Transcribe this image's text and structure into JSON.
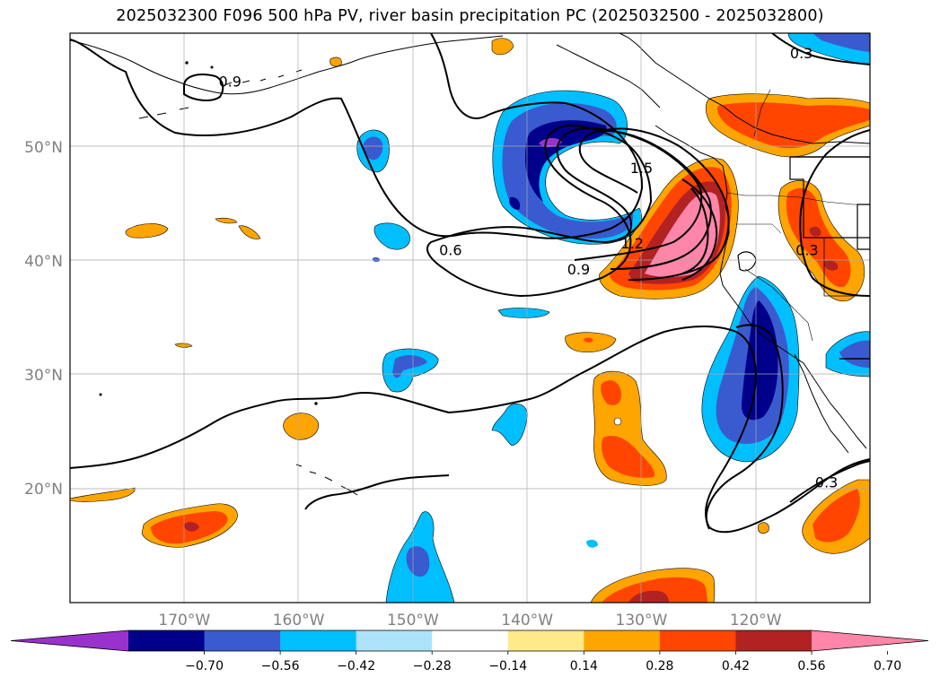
{
  "title": "2025032300 F096 500 hPa PV, river basin precipitation PC (2025032500 - 2025032800)",
  "map": {
    "lon_range": [
      -180,
      -110
    ],
    "lat_range": [
      10,
      60
    ],
    "lat_ticks": [
      {
        "value": 20,
        "label": "20°N"
      },
      {
        "value": 30,
        "label": "30°N"
      },
      {
        "value": 40,
        "label": "40°N"
      },
      {
        "value": 50,
        "label": "50°N"
      }
    ],
    "lon_ticks": [
      {
        "value": -170,
        "label": "170°W"
      },
      {
        "value": -160,
        "label": "160°W"
      },
      {
        "value": -150,
        "label": "150°W"
      },
      {
        "value": -140,
        "label": "140°W"
      },
      {
        "value": -130,
        "label": "130°W"
      },
      {
        "value": -120,
        "label": "120°W"
      }
    ],
    "gridlines": true,
    "contour_labels": [
      {
        "text": "0.9",
        "lon": -166,
        "lat": 55.3
      },
      {
        "text": "0.6",
        "lon": -146.7,
        "lat": 40.5
      },
      {
        "text": "1.5",
        "lon": -130,
        "lat": 47.7
      },
      {
        "text": "1.2",
        "lon": -130.8,
        "lat": 41.1
      },
      {
        "text": "0.9",
        "lon": -135.5,
        "lat": 38.8
      },
      {
        "text": "0.3",
        "lon": -116,
        "lat": 57.8
      },
      {
        "text": "0.3",
        "lon": -115.5,
        "lat": 40.5
      },
      {
        "text": "0.3",
        "lon": -113.8,
        "lat": 20.1
      }
    ]
  },
  "colorbar": {
    "levels": [
      "−0.70",
      "−0.56",
      "−0.42",
      "−0.28",
      "−0.14",
      "0.14",
      "0.28",
      "0.42",
      "0.56",
      "0.70"
    ],
    "colors": [
      "#9932CC",
      "#00008B",
      "#3A5BCF",
      "#00BFFF",
      "#ADE3FA",
      "#FFFFFF",
      "#FFEA8A",
      "#FFA500",
      "#FF4500",
      "#B22222",
      "#FF85A9"
    ],
    "extend": "both"
  },
  "chart_data": {
    "type": "map",
    "title": "2025032300 F096 500 hPa PV, river basin precipitation PC (2025032500 - 2025032800)",
    "x_range_lon": [
      -180,
      -110
    ],
    "y_range_lat": [
      10,
      60
    ],
    "contour_levels_shown": [
      0.3,
      0.6,
      0.9,
      1.2,
      1.5
    ],
    "fill_levels": [
      -0.7,
      -0.56,
      -0.42,
      -0.28,
      -0.14,
      0.14,
      0.28,
      0.42,
      0.56,
      0.7
    ],
    "palette": {
      "purple": "#9932CC",
      "navy": "#00008B",
      "royal": "#3A5BCF",
      "sky": "#00BFFF",
      "pale_blue": "#ADE3FA",
      "pale_yellow": "#FFEA8A",
      "orange": "#FFA500",
      "red_orange": "#FF4500",
      "firebrick": "#B22222",
      "pink": "#FF85A9"
    }
  }
}
